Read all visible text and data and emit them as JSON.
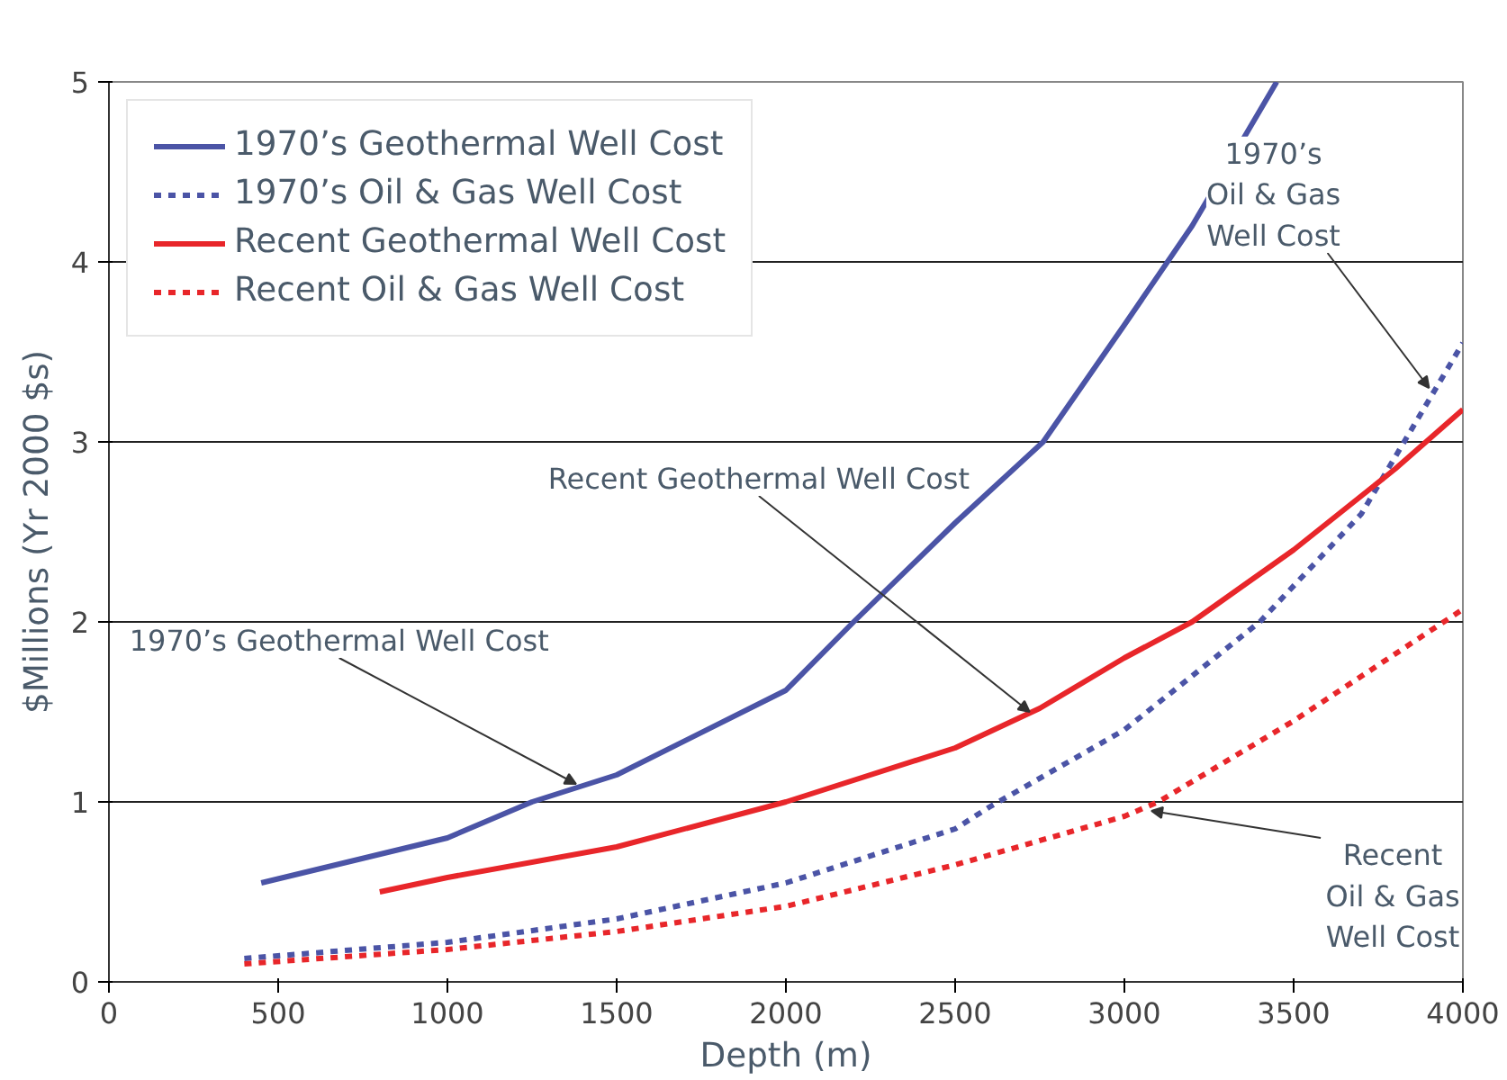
{
  "chart_data": {
    "type": "line",
    "xlabel": "Depth (m)",
    "ylabel": "$Millions (Yr 2000 $s)",
    "xlim": [
      0,
      4000
    ],
    "ylim": [
      0,
      5
    ],
    "xticks": [
      0,
      500,
      1000,
      1500,
      2000,
      2500,
      3000,
      3500,
      4000
    ],
    "yticks": [
      0,
      1,
      2,
      3,
      4,
      5
    ],
    "grid": "y",
    "legend": "top left",
    "series": [
      {
        "name": "1970’s Geothermal Well Cost",
        "color": "#4b54a6",
        "line_style": "solid",
        "x": [
          450,
          1000,
          1250,
          1500,
          2000,
          2200,
          2500,
          2760,
          3000,
          3200,
          3450
        ],
        "values": [
          0.55,
          0.8,
          1.0,
          1.15,
          1.62,
          2.0,
          2.55,
          3.0,
          3.65,
          4.2,
          5.0
        ]
      },
      {
        "name": "1970’s Oil & Gas Well Cost",
        "color": "#4b54a6",
        "line_style": "dashed",
        "x": [
          400,
          1000,
          1500,
          2000,
          2500,
          2600,
          3000,
          3400,
          3700,
          4000
        ],
        "values": [
          0.13,
          0.22,
          0.35,
          0.55,
          0.85,
          0.97,
          1.4,
          2.0,
          2.6,
          3.55
        ]
      },
      {
        "name": "Recent Geothermal Well Cost",
        "color": "#e8262a",
        "line_style": "solid",
        "x": [
          800,
          1000,
          1500,
          2000,
          2500,
          2750,
          3000,
          3200,
          3500,
          3800,
          4000
        ],
        "values": [
          0.5,
          0.58,
          0.75,
          1.0,
          1.3,
          1.52,
          1.8,
          2.0,
          2.4,
          2.85,
          3.18
        ]
      },
      {
        "name": "Recent Oil & Gas Well Cost",
        "color": "#e8262a",
        "line_style": "dashed",
        "x": [
          400,
          1000,
          1500,
          2000,
          2500,
          3000,
          3100,
          3500,
          4000
        ],
        "values": [
          0.1,
          0.18,
          0.28,
          0.42,
          0.65,
          0.92,
          1.0,
          1.45,
          2.07
        ]
      }
    ],
    "annotations": [
      {
        "text": "1970’s Geothermal Well Cost",
        "x": 1380,
        "y": 1.1
      },
      {
        "text": "Recent Geothermal Well Cost",
        "x": 2720,
        "y": 1.5
      },
      {
        "text": "1970’s\nOil & Gas\nWell Cost",
        "x": 3900,
        "y": 3.3
      },
      {
        "text": "Recent\nOil & Gas\nWell Cost",
        "x": 3080,
        "y": 0.95
      }
    ]
  }
}
